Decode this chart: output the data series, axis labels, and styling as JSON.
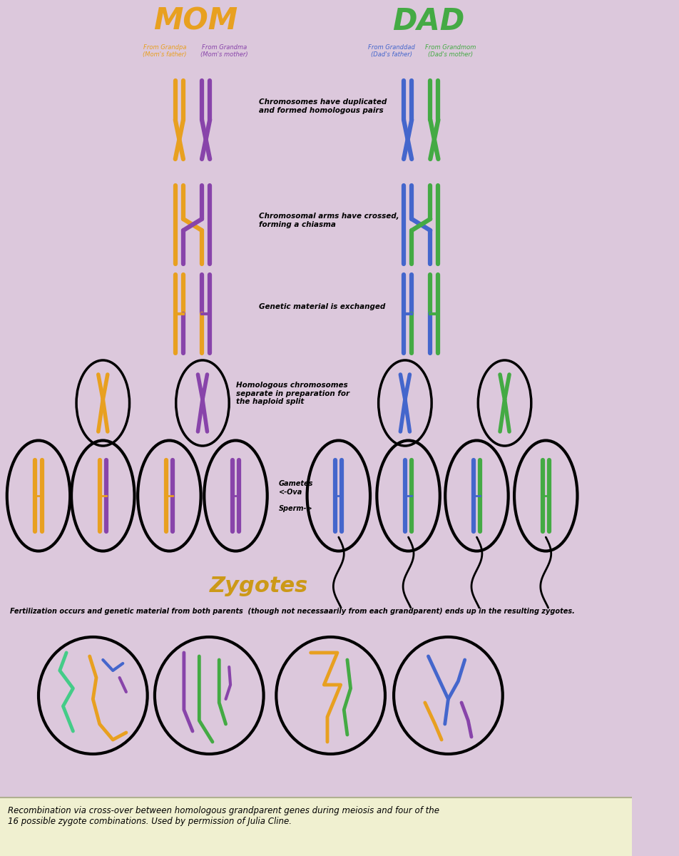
{
  "bg_color": "#dcc8dc",
  "footer_bg": "#f0f0d0",
  "orange": "#e8a020",
  "purple": "#8844aa",
  "blue": "#4466cc",
  "green": "#44aa44",
  "teal": "#44cc88",
  "title_mom": "MOM",
  "title_dad": "DAD",
  "label1": "From Grandpa\n(Mom's father)",
  "label2": "From Grandma\n(Mom's mother)",
  "label3": "From Granddad\n(Dad's father)",
  "label4": "From Grandmom\n(Dad's mother)",
  "text1": "Chromosomes have duplicated\nand formed homologous pairs",
  "text2": "Chromosomal arms have crossed,\nforming a chiasma",
  "text3": "Genetic material is exchanged",
  "text4": "Homologous chromosomes\nseparate in preparation for\nthe haploid split",
  "text5": "Gametes\n<-Ova\n\nSperm->",
  "zygotes_label": "Zygotes",
  "footer_text": "Recombination via cross-over between homologous grandparent genes during meiosis and four of the\n16 possible zygote combinations. Used by permission of Julia Cline."
}
